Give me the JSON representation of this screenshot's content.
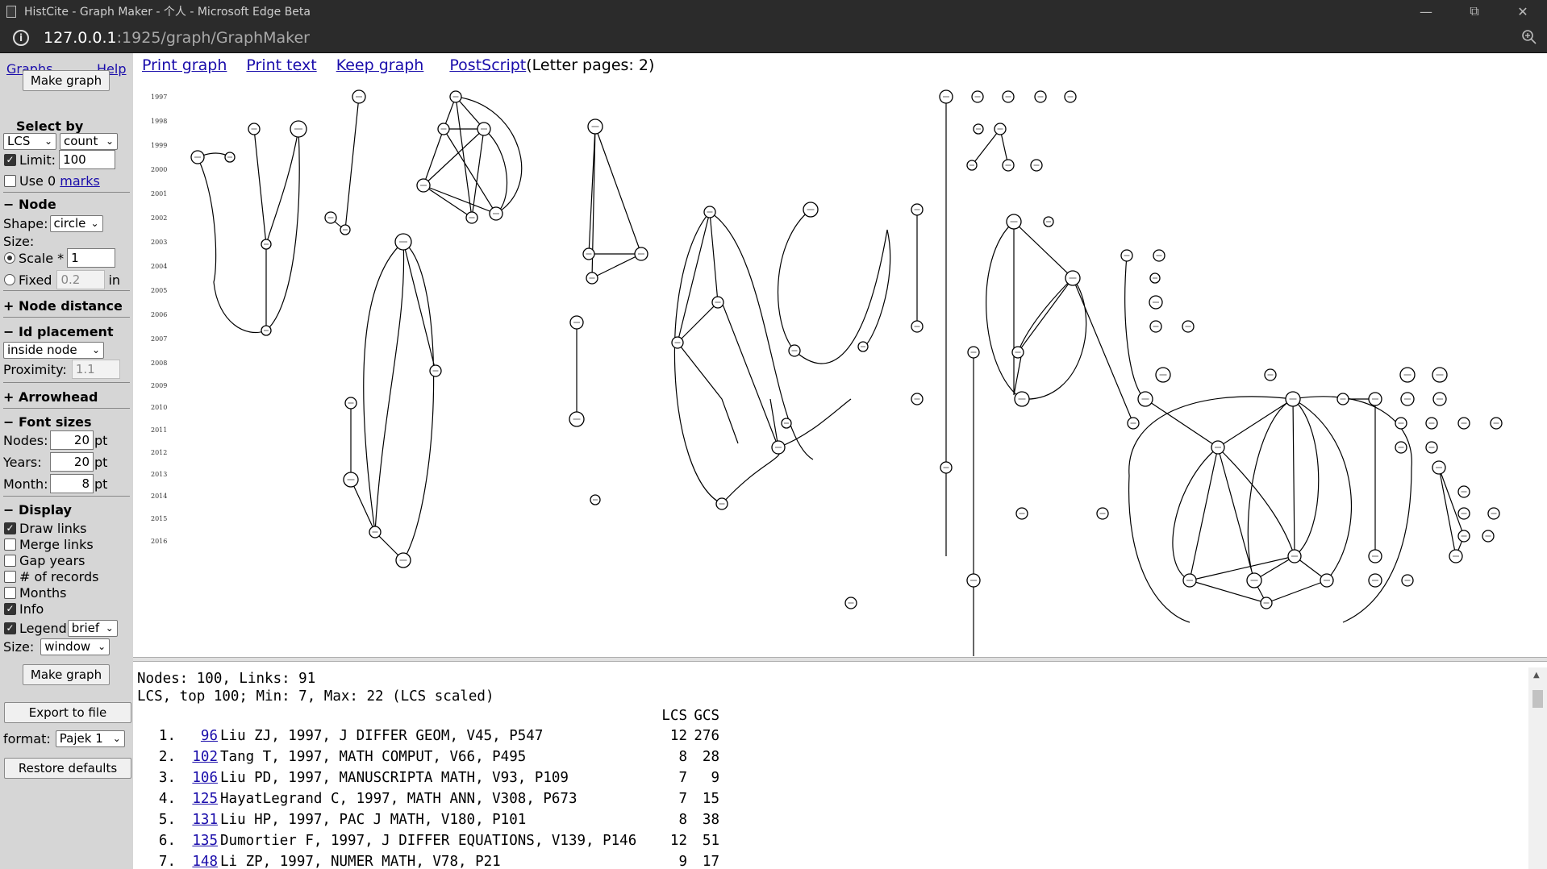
{
  "window": {
    "title": "HistCite - Graph Maker - 个人 - Microsoft Edge Beta",
    "url_host": "127.0.0.1",
    "url_path": ":1925/graph/GraphMaker"
  },
  "sidebar": {
    "graphs_link": "Graphs",
    "help_link": "Help",
    "make_graph": "Make graph",
    "select_by": "Select by",
    "select_metric": "LCS",
    "select_order": "count",
    "limit_label": "Limit:",
    "limit_value": "100",
    "use_label": "Use 0",
    "marks_link": "marks",
    "node_heading": "− Node",
    "shape_label": "Shape:",
    "shape_value": "circle",
    "size_label": "Size:",
    "scale_label": "Scale *",
    "scale_value": "1",
    "fixed_label": "Fixed",
    "fixed_value": "0.2",
    "fixed_unit": "in",
    "node_distance": "+ Node distance",
    "id_placement": "− Id placement",
    "placement_value": "inside node",
    "proximity_label": "Proximity:",
    "proximity_value": "1.1",
    "arrowhead": "+ Arrowhead",
    "font_sizes": "− Font sizes",
    "nodes_label": "Nodes:",
    "nodes_value": "20",
    "years_label": "Years:",
    "years_value": "20",
    "month_label": "Month:",
    "month_value": "8",
    "pt": "pt",
    "display_heading": "− Display",
    "display_options": [
      {
        "label": "Draw links",
        "checked": true
      },
      {
        "label": "Merge links",
        "checked": false
      },
      {
        "label": "Gap years",
        "checked": false
      },
      {
        "label": "# of records",
        "checked": false
      },
      {
        "label": "Months",
        "checked": false
      },
      {
        "label": "Info",
        "checked": true
      }
    ],
    "legend_label": "Legend",
    "legend_value": "brief",
    "size2_label": "Size:",
    "size2_value": "window",
    "make_graph_2": "Make graph",
    "export_button": "Export to file",
    "format_label": "format:",
    "format_value": "Pajek 1",
    "restore_button": "Restore defaults"
  },
  "toolbar": {
    "print_graph": "Print graph",
    "print_text": "Print text",
    "keep_graph": "Keep graph",
    "postscript": "PostScript",
    "pages_note": "(Letter pages: 2)"
  },
  "graph": {
    "years": [
      "1997",
      "1998",
      "1999",
      "2000",
      "2001",
      "2002",
      "2003",
      "2004",
      "2005",
      "2006",
      "2007",
      "2008",
      "2009",
      "2010",
      "2011",
      "2012",
      "2013",
      "2014",
      "2015",
      "2016"
    ]
  },
  "info": {
    "line1": "Nodes: 100, Links: 91",
    "line2": "LCS, top 100; Min: 7, Max: 22 (LCS scaled)",
    "col_lcs": "LCS",
    "col_gcs": "GCS",
    "records": [
      {
        "idx": "1.",
        "id": "96",
        "text": "Liu ZJ, 1997, J DIFFER GEOM, V45, P547",
        "lcs": "12",
        "gcs": "276"
      },
      {
        "idx": "2.",
        "id": "102",
        "text": "Tang T, 1997, MATH COMPUT, V66, P495",
        "lcs": "8",
        "gcs": "28"
      },
      {
        "idx": "3.",
        "id": "106",
        "text": "Liu PD, 1997, MANUSCRIPTA MATH, V93, P109",
        "lcs": "7",
        "gcs": "9"
      },
      {
        "idx": "4.",
        "id": "125",
        "text": "HayatLegrand C, 1997, MATH ANN, V308, P673",
        "lcs": "7",
        "gcs": "15"
      },
      {
        "idx": "5.",
        "id": "131",
        "text": "Liu HP, 1997, PAC J MATH, V180, P101",
        "lcs": "8",
        "gcs": "38"
      },
      {
        "idx": "6.",
        "id": "135",
        "text": "Dumortier F, 1997, J DIFFER EQUATIONS, V139, P146",
        "lcs": "12",
        "gcs": "51"
      },
      {
        "idx": "7.",
        "id": "148",
        "text": "Li ZP, 1997, NUMER MATH, V78, P21",
        "lcs": "9",
        "gcs": "17"
      }
    ]
  }
}
